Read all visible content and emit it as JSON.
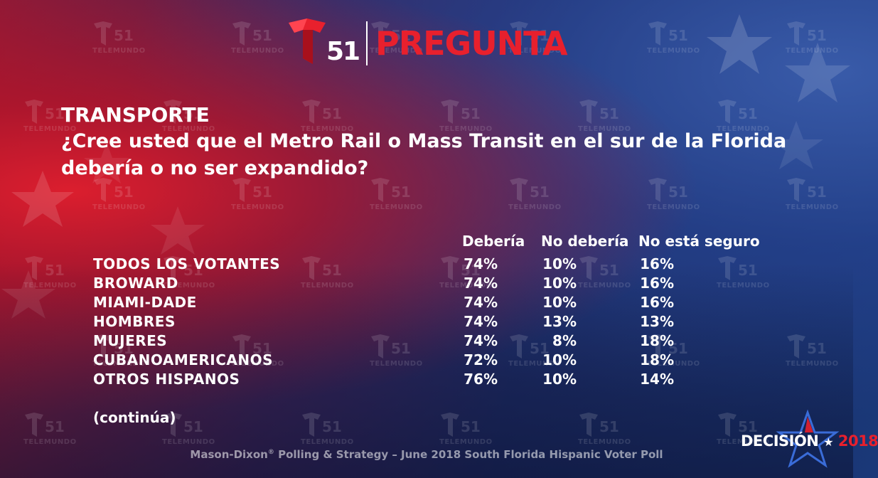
{
  "colors": {
    "brand_red": "#e8202d",
    "text_white": "#ffffff",
    "bg_blue": "#1d2c66",
    "bg_red": "#b81428"
  },
  "branding": {
    "channel_number": "51",
    "watermark_number": "51",
    "watermark_label": "TELEMUNDO",
    "header_title": "PREGUNTA",
    "logo_icon": "telemundo-t-logo",
    "decision_word": "DECISIÓN",
    "decision_star": "★",
    "decision_year": "2018"
  },
  "question": {
    "section": "TRANSPORTE",
    "text": "¿Cree usted que el Metro Rail o Mass Transit en el sur de la Florida debería o no ser expandido?"
  },
  "table": {
    "columns": [
      "Debería",
      "No debería",
      "No está seguro"
    ],
    "rows": [
      {
        "label": "TODOS LOS VOTANTES",
        "values": [
          "74%",
          "10%",
          "16%"
        ]
      },
      {
        "label": "BROWARD",
        "values": [
          "74%",
          "10%",
          "16%"
        ]
      },
      {
        "label": "MIAMI-DADE",
        "values": [
          "74%",
          "10%",
          "16%"
        ]
      },
      {
        "label": "HOMBRES",
        "values": [
          "74%",
          "13%",
          "13%"
        ]
      },
      {
        "label": "MUJERES",
        "values": [
          "74%",
          "8%",
          "18%"
        ]
      },
      {
        "label": "CUBANOAMERICANOS",
        "values": [
          "72%",
          "10%",
          "18%"
        ]
      },
      {
        "label": "OTROS HISPANOS",
        "values": [
          "76%",
          "10%",
          "14%"
        ]
      }
    ]
  },
  "footer": {
    "continued": "(continúa)",
    "source_prefix": "Mason-Dixon",
    "source_mark": "®",
    "source_suffix": " Polling & Strategy – June 2018 South Florida Hispanic Voter Poll"
  }
}
